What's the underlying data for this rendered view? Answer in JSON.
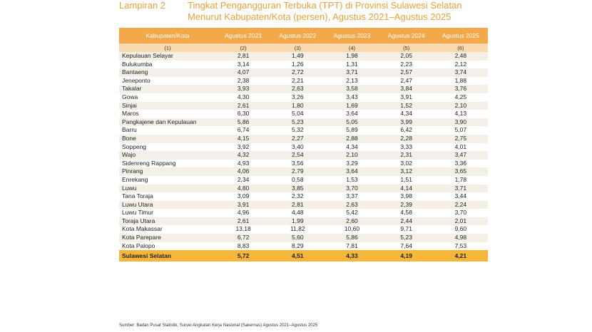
{
  "title": {
    "label": "Lampiran 2",
    "line1": "Tingkat Pengangguran Terbuka (TPT) di Provinsi Sulawesi Selatan",
    "line2": "Menurut Kabupaten/Kota (persen), Agustus 2021–Agustus 2025"
  },
  "table": {
    "headers": [
      "Kabupaten/Kota",
      "Agustus 2021",
      "Agustus 2022",
      "Agustus 2023",
      "Agustus 2024",
      "Agustus 2025"
    ],
    "numbers": [
      "(1)",
      "(2)",
      "(3)",
      "(4)",
      "(5)",
      "(6)"
    ],
    "rows": [
      [
        "Kepulauan Selayar",
        "2,81",
        "1,49",
        "1,98",
        "2,05",
        "2,48"
      ],
      [
        "Bulukumba",
        "3,14",
        "1,26",
        "1,31",
        "2,23",
        "2,12"
      ],
      [
        "Bantaeng",
        "4,07",
        "2,72",
        "3,71",
        "2,57",
        "3,74"
      ],
      [
        "Jeneponto",
        "2,38",
        "2,21",
        "2,13",
        "2,47",
        "1,88"
      ],
      [
        "Takalar",
        "3,93",
        "2,63",
        "3,58",
        "3,84",
        "3,76"
      ],
      [
        "Gowa",
        "4,30",
        "3,26",
        "3,43",
        "3,91",
        "4,25"
      ],
      [
        "Sinjai",
        "2,61",
        "1,80",
        "1,69",
        "1,52",
        "2,10"
      ],
      [
        "Maros",
        "6,30",
        "5,04",
        "3,64",
        "4,34",
        "4,13"
      ],
      [
        "Pangkajene dan Kepulauan",
        "5,86",
        "5,23",
        "5,05",
        "3,99",
        "3,90"
      ],
      [
        "Barru",
        "6,74",
        "5,32",
        "5,89",
        "6,42",
        "5,07"
      ],
      [
        "Bone",
        "4,15",
        "2,27",
        "2,88",
        "2,28",
        "2,75"
      ],
      [
        "Soppeng",
        "3,92",
        "3,40",
        "4,34",
        "3,33",
        "4,01"
      ],
      [
        "Wajo",
        "4,32",
        "2,54",
        "2,10",
        "2,31",
        "3,47"
      ],
      [
        "Sidenreng Rappang",
        "4,93",
        "3,56",
        "3,29",
        "3,02",
        "3,36"
      ],
      [
        "Pinrang",
        "4,06",
        "2,79",
        "3,64",
        "3,12",
        "3,65"
      ],
      [
        "Enrekang",
        "2,34",
        "0,58",
        "1,53",
        "1,51",
        "1,78"
      ],
      [
        "Luwu",
        "4,80",
        "3,85",
        "3,70",
        "4,14",
        "3,71"
      ],
      [
        "Tana Toraja",
        "3,09",
        "2,32",
        "3,37",
        "3,98",
        "3,44"
      ],
      [
        "Luwu Utara",
        "3,91",
        "2,81",
        "2,63",
        "2,39",
        "2,24"
      ],
      [
        "Luwu Timur",
        "4,96",
        "4,48",
        "5,42",
        "4,58",
        "3,70"
      ],
      [
        "Toraja Utara",
        "2,61",
        "1,99",
        "2,60",
        "2,44",
        "2,01"
      ],
      [
        "Kota Makassar",
        "13,18",
        "11,82",
        "10,60",
        "9,71",
        "9,60"
      ],
      [
        "Kota Parepare",
        "6,72",
        "5,60",
        "5,86",
        "5,23",
        "4,98"
      ],
      [
        "Kota Palopo",
        "8,83",
        "8,29",
        "7,81",
        "7,64",
        "7,53"
      ]
    ],
    "total": [
      "Sulawesi Selatan",
      "5,72",
      "4,51",
      "4,33",
      "4,19",
      "4,21"
    ]
  },
  "source": "Sumber: Badan Pusat Statistik, Survei Angkatan Kerja Nasional (Sakernas) Agustus 2021–Agustus 2025"
}
